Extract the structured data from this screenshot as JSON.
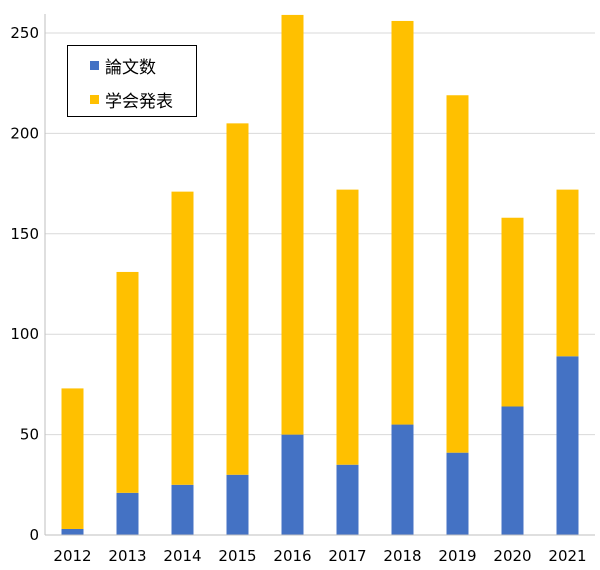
{
  "chart_data": {
    "type": "bar",
    "stacked": true,
    "categories": [
      "2012",
      "2013",
      "2014",
      "2015",
      "2016",
      "2017",
      "2018",
      "2019",
      "2020",
      "2021"
    ],
    "series": [
      {
        "name": "論文数",
        "color": "#4472C4",
        "values": [
          3,
          21,
          25,
          30,
          50,
          35,
          55,
          41,
          64,
          89
        ]
      },
      {
        "name": "学会発表",
        "color": "#FFC000",
        "values": [
          70,
          110,
          146,
          175,
          209,
          137,
          201,
          178,
          94,
          83
        ]
      }
    ],
    "ylim": [
      0,
      260
    ],
    "yticks": [
      0,
      50,
      100,
      150,
      200,
      250
    ],
    "ytick_labels": [
      "0",
      "50",
      "100",
      "150",
      "200",
      "250"
    ],
    "grid": true,
    "grid_color": "#d9d9d9",
    "legend_position": "top-left",
    "title": "",
    "xlabel": "",
    "ylabel": ""
  }
}
